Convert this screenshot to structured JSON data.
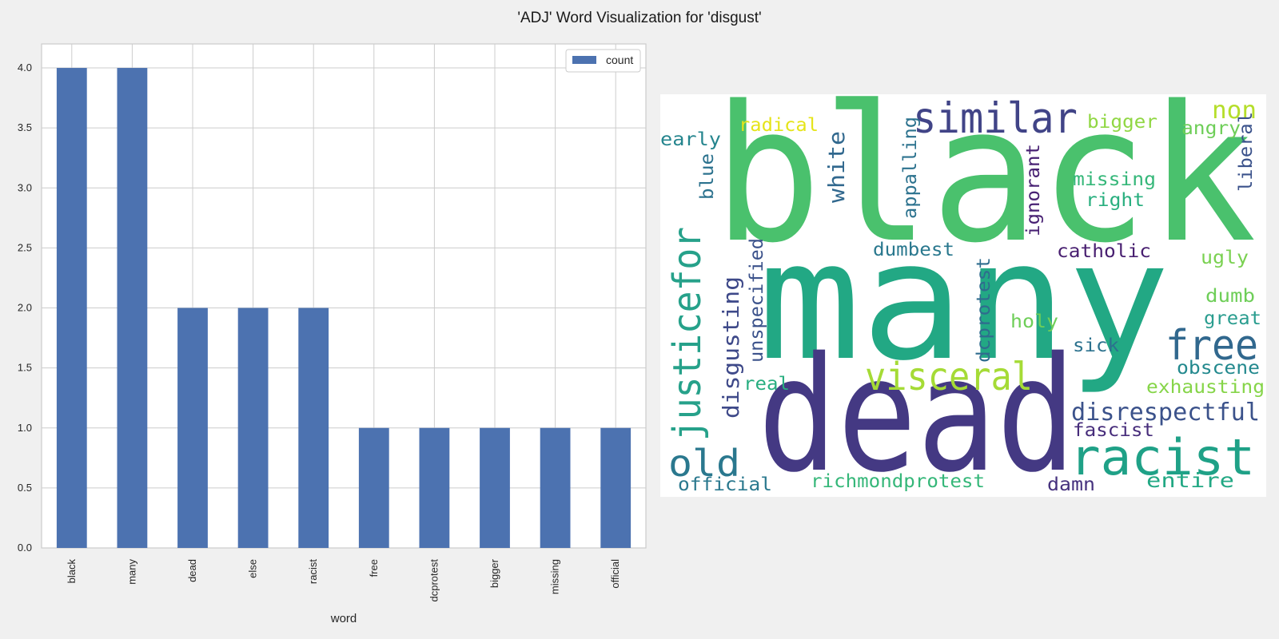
{
  "figure_title": "'ADJ' Word Visualization for 'disgust'",
  "chart_data": [
    {
      "type": "bar",
      "categories": [
        "black",
        "many",
        "dead",
        "else",
        "racist",
        "free",
        "dcprotest",
        "bigger",
        "missing",
        "official"
      ],
      "series": [
        {
          "name": "count",
          "values": [
            4,
            4,
            2,
            2,
            2,
            1,
            1,
            1,
            1,
            1
          ],
          "color": "#4c72b0"
        }
      ],
      "xlabel": "word",
      "ylabel": "",
      "ylim": [
        0,
        4.2
      ],
      "yticks": [
        "0.0",
        "0.5",
        "1.0",
        "1.5",
        "2.0",
        "2.5",
        "3.0",
        "3.5",
        "4.0"
      ],
      "grid": true,
      "legend": "top-right",
      "plot_bg": "#ffffff",
      "grid_color": "#cccccc"
    },
    {
      "type": "wordcloud",
      "words": [
        {
          "text": "black",
          "color": "#4ac16d"
        },
        {
          "text": "many",
          "color": "#22a884"
        },
        {
          "text": "dead",
          "color": "#443983"
        },
        {
          "text": "similar",
          "color": "#414487"
        },
        {
          "text": "justicefor",
          "color": "#26a18a"
        },
        {
          "text": "visceral",
          "color": "#a5db36"
        },
        {
          "text": "racist",
          "color": "#1fa187"
        },
        {
          "text": "free",
          "color": "#31688e"
        },
        {
          "text": "old",
          "color": "#2a788e"
        },
        {
          "text": "disrespectful",
          "color": "#3b528b"
        },
        {
          "text": "disgusting",
          "color": "#3e4989"
        },
        {
          "text": "white",
          "color": "#31688e"
        },
        {
          "text": "non",
          "color": "#b5de2b"
        },
        {
          "text": "radical",
          "color": "#e5e419"
        },
        {
          "text": "early",
          "color": "#25858e"
        },
        {
          "text": "bigger",
          "color": "#90d743"
        },
        {
          "text": "angry",
          "color": "#6ece58"
        },
        {
          "text": "missing",
          "color": "#35b779"
        },
        {
          "text": "right",
          "color": "#29af7f"
        },
        {
          "text": "liberal",
          "color": "#3b528b"
        },
        {
          "text": "blue",
          "color": "#2c728e"
        },
        {
          "text": "appalling",
          "color": "#2c728e"
        },
        {
          "text": "ignorant",
          "color": "#482173"
        },
        {
          "text": "dumbest",
          "color": "#2a788e"
        },
        {
          "text": "catholic",
          "color": "#481f70"
        },
        {
          "text": "ugly",
          "color": "#7ad151"
        },
        {
          "text": "unspecified",
          "color": "#3b528b"
        },
        {
          "text": "dcprotest",
          "color": "#2f6c8e"
        },
        {
          "text": "dumb",
          "color": "#6ece58"
        },
        {
          "text": "great",
          "color": "#2a9d8f"
        },
        {
          "text": "holy",
          "color": "#6ece58"
        },
        {
          "text": "sick",
          "color": "#2c728e"
        },
        {
          "text": "obscene",
          "color": "#23898e"
        },
        {
          "text": "real",
          "color": "#28ae80"
        },
        {
          "text": "exhausting",
          "color": "#86d549"
        },
        {
          "text": "fascist",
          "color": "#472d7b"
        },
        {
          "text": "official",
          "color": "#2a788e"
        },
        {
          "text": "richmondprotest",
          "color": "#35b779"
        },
        {
          "text": "damn",
          "color": "#46327e"
        },
        {
          "text": "entire",
          "color": "#22a884"
        }
      ]
    }
  ]
}
